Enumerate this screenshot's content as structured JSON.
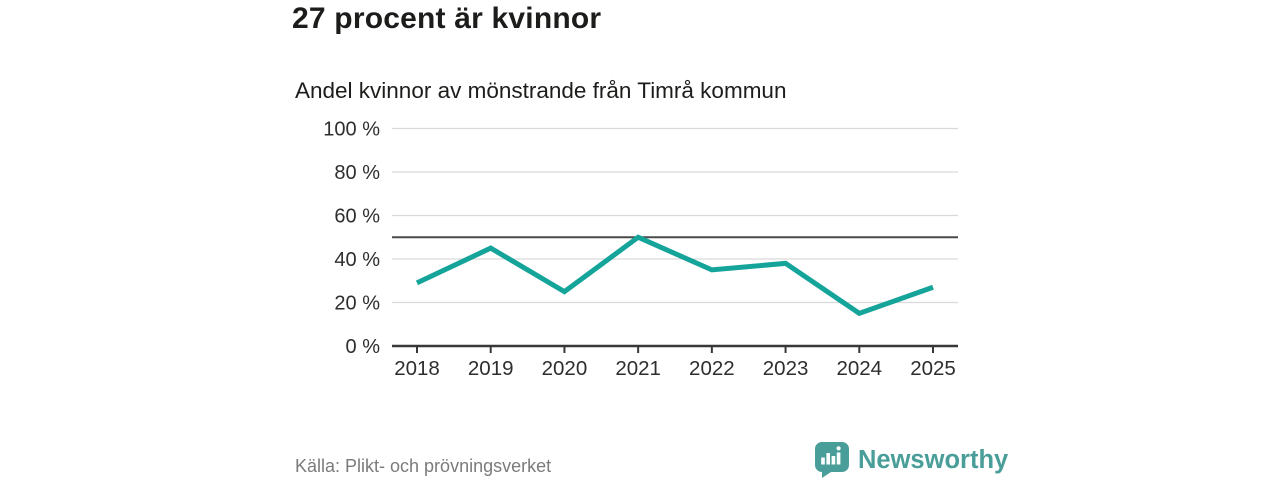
{
  "header": {
    "title": "27 procent är kvinnor",
    "subtitle": "Andel kvinnor av mönstrande från Timrå kommun"
  },
  "footer": {
    "source": "Källa: Plikt- och prövningsverket",
    "brand": {
      "name": "Newsworthy",
      "icon": "bar-chart-speech-bubble-icon",
      "color": "#4a9e99"
    }
  },
  "colors": {
    "line": "#14a49a",
    "grid": "#d9d9d9",
    "reference_line": "#4a4a4a",
    "axis": "#383838",
    "tick_text": "#2e2e2e",
    "title_text": "#1c1c1a",
    "muted_text": "#7b7b7b",
    "brand_teal": "#4a9e99"
  },
  "chart_data": {
    "type": "line",
    "title": "27 procent är kvinnor",
    "subtitle": "Andel kvinnor av mönstrande från Timrå kommun",
    "x": [
      2018,
      2019,
      2020,
      2021,
      2022,
      2023,
      2024,
      2025
    ],
    "series": [
      {
        "name": "Andel kvinnor av mönstrande",
        "values": [
          29,
          45,
          25,
          50,
          35,
          38,
          15,
          27
        ]
      }
    ],
    "ylim": [
      0,
      100
    ],
    "yticks": [
      0,
      20,
      40,
      60,
      80,
      100
    ],
    "ytick_suffix": " %",
    "reference_line": 50,
    "grid": true,
    "legend": false,
    "xlabel": "",
    "ylabel": ""
  }
}
